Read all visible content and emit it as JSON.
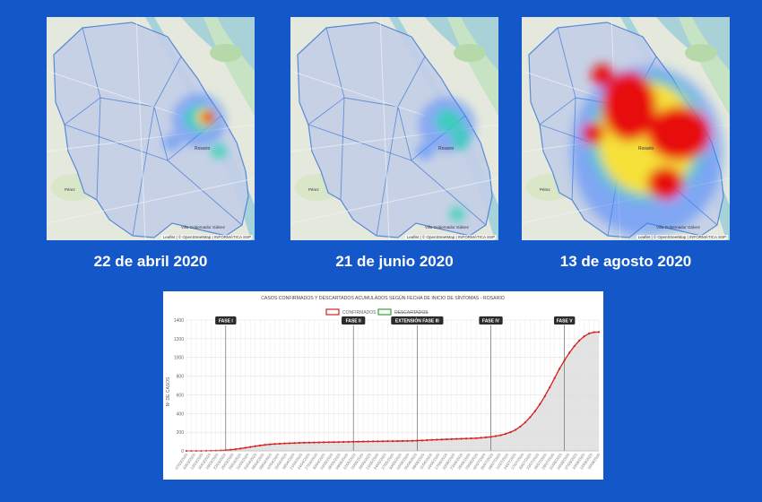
{
  "colors": {
    "background": "#1357c9",
    "confirmed_line": "#d42020",
    "discarded_legend": "#3aa13a",
    "heat_low": "#3a7bff",
    "heat_mid": "#2fd3b3",
    "heat_yellow": "#ffe233",
    "heat_high": "#e80f0f"
  },
  "maps": [
    {
      "caption": "22 de abril 2020",
      "place_label": "Rosario",
      "south_label": "Villa Gobernador Gálvez",
      "west_label": "Pérez",
      "credit": "Leaflet | © OpenStreetMap | INFORMÁTICA SSP",
      "intensity": "low"
    },
    {
      "caption": "21 de junio 2020",
      "place_label": "Rosario",
      "south_label": "Villa Gobernador Gálvez",
      "west_label": "Pérez",
      "credit": "Leaflet | © OpenStreetMap | INFORMÁTICA SSP",
      "intensity": "low"
    },
    {
      "caption": "13 de agosto 2020",
      "place_label": "Rosario",
      "south_label": "Villa Gobernador Gálvez",
      "west_label": "Pérez",
      "credit": "Leaflet | © OpenStreetMap | INFORMÁTICA SSP",
      "intensity": "high"
    }
  ],
  "chart_data": {
    "type": "line",
    "title": "CASOS CONFIRMADOS Y DESCARTADOS ACUMULADOS SEGÚN FECHA DE INICIO DE SÍNTOMAS - ROSARIO",
    "legend": [
      "CONFIRMADOS",
      "DESCARTADOS"
    ],
    "legend_placement": "top-center",
    "ylabel": "Nº DE CASOS",
    "ylim": [
      0,
      1400
    ],
    "yticks": [
      0,
      200,
      400,
      600,
      800,
      1000,
      1200,
      1400
    ],
    "grid": true,
    "phases": [
      {
        "label": "FASE I",
        "index": 8
      },
      {
        "label": "FASE II",
        "index": 34
      },
      {
        "label": "EXTENSIÓN FASE III",
        "index": 47
      },
      {
        "label": "FASE IV",
        "index": 62
      },
      {
        "label": "FASE V",
        "index": 77
      }
    ],
    "x_labels": [
      "07/03/2020",
      "10/03/2020",
      "13/03/2020",
      "16/03/2020",
      "19/03/2020",
      "22/03/2020",
      "25/03/2020",
      "28/03/2020",
      "31/03/2020",
      "03/04/2020",
      "06/04/2020",
      "09/04/2020",
      "12/04/2020",
      "15/04/2020",
      "18/04/2020",
      "21/04/2020",
      "24/04/2020",
      "27/04/2020",
      "30/04/2020",
      "03/05/2020",
      "06/05/2020",
      "09/05/2020",
      "12/05/2020",
      "15/05/2020",
      "18/05/2020",
      "21/05/2020",
      "24/05/2020",
      "27/05/2020",
      "30/05/2020",
      "02/06/2020",
      "05/06/2020",
      "08/06/2020",
      "11/06/2020",
      "14/06/2020",
      "17/06/2020",
      "20/06/2020",
      "23/06/2020",
      "26/06/2020",
      "29/06/2020",
      "02/07/2020",
      "05/07/2020",
      "08/07/2020",
      "11/07/2020",
      "14/07/2020",
      "17/07/2020",
      "20/07/2020",
      "23/07/2020",
      "26/07/2020",
      "29/07/2020",
      "01/08/2020",
      "04/08/2020",
      "07/08/2020",
      "10/08/2020",
      "13/08/2020",
      "16/08/2020"
    ],
    "series": [
      {
        "name": "CONFIRMADOS",
        "values": [
          0,
          0,
          0,
          0,
          1,
          2,
          3,
          5,
          8,
          12,
          18,
          25,
          33,
          42,
          50,
          58,
          65,
          70,
          74,
          77,
          80,
          82,
          84,
          86,
          88,
          89,
          90,
          91,
          92,
          93,
          94,
          95,
          96,
          97,
          98,
          99,
          100,
          101,
          102,
          102,
          103,
          104,
          104,
          105,
          106,
          107,
          108,
          110,
          112,
          115,
          118,
          120,
          122,
          124,
          126,
          128,
          130,
          132,
          134,
          136,
          140,
          145,
          150,
          158,
          168,
          182,
          200,
          225,
          260,
          305,
          360,
          425,
          500,
          585,
          680,
          780,
          880,
          970,
          1050,
          1120,
          1180,
          1225,
          1255,
          1270,
          1272
        ]
      }
    ]
  }
}
